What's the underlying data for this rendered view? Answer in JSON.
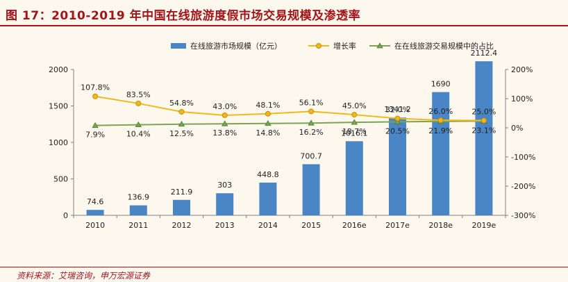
{
  "figure": {
    "title": "图 17：2010-2019 年中国在线旅游度假市场交易规模及渗透率",
    "source": "资料来源：艾瑞咨询，申万宏源证券"
  },
  "colors": {
    "title": "#a2131a",
    "bar": "#4a86c5",
    "growth_line": "#f2b81b",
    "growth_marker_edge": "#c98d00",
    "share_line": "#7aa452",
    "share_marker_edge": "#4e7d2c",
    "axis_text": "#222222",
    "grid": "#d9d9d9"
  },
  "chart_data": {
    "type": "bar",
    "categories": [
      "2010",
      "2011",
      "2012",
      "2013",
      "2014",
      "2015",
      "2016e",
      "2017e",
      "2018e",
      "2019e"
    ],
    "series": [
      {
        "name": "在线旅游市场规模（亿元）",
        "type": "bar",
        "axis": "left",
        "values": [
          74.6,
          136.9,
          211.9,
          303,
          448.8,
          700.7,
          1016.1,
          1341.2,
          1690,
          2112.4
        ],
        "labels": [
          "74.6",
          "136.9",
          "211.9",
          "303",
          "448.8",
          "700.7",
          "1016.1",
          "1341.2",
          "1690",
          "2112.4"
        ]
      },
      {
        "name": "增长率",
        "type": "line",
        "axis": "right",
        "values": [
          107.8,
          83.5,
          54.8,
          43.0,
          48.1,
          56.1,
          45.0,
          32.0,
          26.0,
          25.0
        ],
        "labels": [
          "107.8%",
          "83.5%",
          "54.8%",
          "43.0%",
          "48.1%",
          "56.1%",
          "45.0%",
          "32.0%",
          "26.0%",
          "25.0%"
        ]
      },
      {
        "name": "在在线旅游交易规模中的占比",
        "type": "line",
        "axis": "right",
        "values": [
          7.9,
          10.4,
          12.5,
          13.8,
          14.8,
          16.2,
          18.7,
          20.5,
          21.9,
          23.1
        ],
        "labels": [
          "7.9%",
          "10.4%",
          "12.5%",
          "13.8%",
          "14.8%",
          "16.2%",
          "18.7%",
          "20.5%",
          "21.9%",
          "23.1%"
        ]
      }
    ],
    "y_left": {
      "min": 0,
      "max": 2000,
      "ticks": [
        "0",
        "500",
        "1000",
        "1500",
        "2000"
      ]
    },
    "y_right": {
      "min": -300,
      "max": 200,
      "ticks": [
        "-300%",
        "-200%",
        "-100%",
        "0%",
        "100%",
        "200%"
      ]
    },
    "grid": false,
    "legend_position": "top"
  }
}
